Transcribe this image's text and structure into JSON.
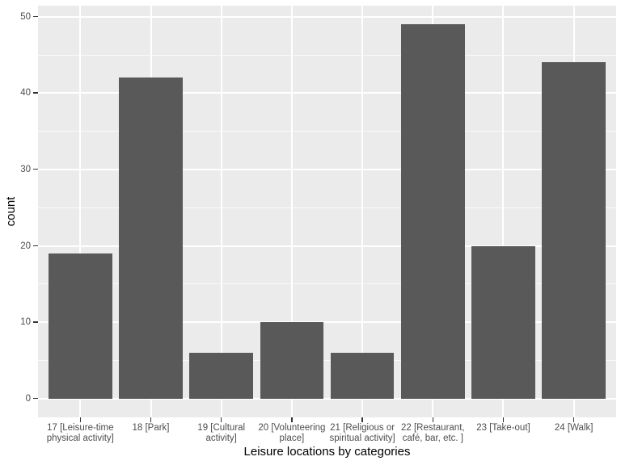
{
  "chart_data": {
    "type": "bar",
    "title": "",
    "xlabel": "Leisure locations by categories",
    "ylabel": "count",
    "categories": [
      "17 [Leisure-time\nphysical activity]",
      "18 [Park]",
      "19 [Cultural\nactivity]",
      "20 [Volunteering\nplace]",
      "21 [Religious or\nspiritual activity]",
      "22 [Restaurant,\ncafé, bar, etc. ]",
      "23 [Take-out]",
      "24 [Walk]"
    ],
    "values": [
      19,
      42,
      6,
      10,
      6,
      49,
      20,
      44
    ],
    "ylim": [
      0,
      50
    ],
    "yticks_major": [
      0,
      10,
      20,
      30,
      40,
      50
    ],
    "yticks_minor": [
      5,
      15,
      25,
      35,
      45
    ],
    "legend": "none",
    "grid": true,
    "colors": {
      "bar_fill": "#595959",
      "panel_background": "#EBEBEB",
      "gridline": "#FFFFFF",
      "tick_label": "#4D4D4D",
      "tick_mark": "#333333",
      "axis_title": "#000000",
      "figure_background": "#FFFFFF"
    }
  }
}
